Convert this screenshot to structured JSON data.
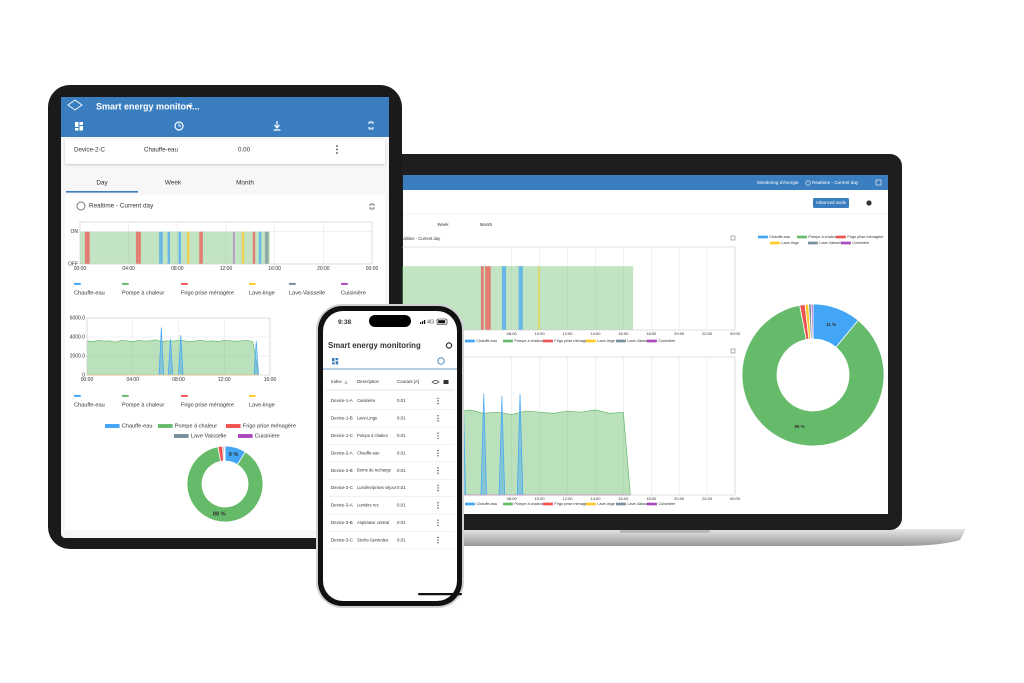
{
  "tablet": {
    "app_title": "Smart energy monitori...",
    "device_row": [
      "Device-2-C",
      "Chauffe-eau",
      "0.00"
    ],
    "tabs": [
      "Day",
      "Week",
      "Month"
    ],
    "card_title": "Realtime - Current day",
    "state_chart": {
      "type": "state",
      "xlim": [
        0,
        24
      ],
      "xticks": [
        {
          "value": 0,
          "label": "00:00"
        },
        {
          "value": 4,
          "label": "04:00"
        },
        {
          "value": 8,
          "label": "08:00"
        },
        {
          "value": 12,
          "label": "12:00"
        },
        {
          "value": 16,
          "label": "16:00"
        },
        {
          "value": 20,
          "label": "20:00"
        },
        {
          "value": 24,
          "label": "00:00"
        }
      ],
      "ylim": [
        0,
        1.3
      ],
      "yticks": [
        {
          "value": 1,
          "label": "ON"
        },
        {
          "value": 0,
          "label": "OFF"
        }
      ],
      "series": [
        {
          "name": "Pompe à chaleur",
          "color": "#66bb6a",
          "intervals": [
            [
              0,
              15.6
            ]
          ]
        },
        {
          "name": "Chauffe-eau",
          "color": "#42a5f5",
          "intervals": [
            [
              6.5,
              6.8
            ],
            [
              7.2,
              7.4
            ],
            [
              8.1,
              8.3
            ],
            [
              14.7,
              14.9
            ]
          ]
        },
        {
          "name": "Frigo prise ménagère",
          "color": "#ef5350",
          "intervals": [
            [
              0.4,
              0.8
            ],
            [
              4.6,
              5.0
            ],
            [
              9.8,
              10.1
            ],
            [
              14.2,
              14.4
            ]
          ]
        },
        {
          "name": "Lave-linge",
          "color": "#ffca28",
          "intervals": [
            [
              8.8,
              9.0
            ],
            [
              13.3,
              13.5
            ]
          ]
        },
        {
          "name": "Lave-Vaisselle",
          "color": "#78909c",
          "intervals": [
            [
              15.2,
              15.5
            ]
          ]
        },
        {
          "name": "Cuisinière",
          "color": "#ab47bc",
          "intervals": [
            [
              12.6,
              12.7
            ]
          ]
        }
      ]
    },
    "power_chart": {
      "type": "area",
      "xlim": [
        0,
        16
      ],
      "xticks": [
        {
          "value": 0,
          "label": "00:00"
        },
        {
          "value": 4,
          "label": "04:00"
        },
        {
          "value": 8,
          "label": "08:00"
        },
        {
          "value": 12,
          "label": "12:00"
        },
        {
          "value": 16,
          "label": "16:00"
        }
      ],
      "ylim": [
        0,
        6000
      ],
      "yticks": [
        0,
        {
          "value": 2000,
          "label": "2000.0"
        },
        {
          "value": 4000,
          "label": "4000.0"
        },
        {
          "value": 6000,
          "label": "6000.0"
        }
      ],
      "series": [
        {
          "name": "Chauffe-eau",
          "color": "#42a5f5",
          "x": [
            6.3,
            6.5,
            6.7,
            7.1,
            7.3,
            7.5,
            8.0,
            8.2,
            8.4,
            14.6,
            14.8,
            15.0
          ],
          "values": [
            0,
            5000,
            0,
            0,
            3800,
            0,
            0,
            4200,
            0,
            0,
            3600,
            0
          ]
        },
        {
          "name": "Pompe à chaleur",
          "color": "#66bb6a",
          "x": [
            0,
            0.5,
            1,
            1.5,
            2,
            2.5,
            3,
            3.5,
            4,
            4.5,
            5,
            5.5,
            6,
            6.5,
            7,
            7.5,
            8,
            8.5,
            9,
            9.5,
            10,
            10.5,
            11,
            11.5,
            12,
            12.5,
            13,
            13.5,
            14,
            14.5,
            15
          ],
          "values": [
            3600,
            3500,
            3650,
            3550,
            3600,
            3450,
            3650,
            3600,
            3500,
            3650,
            3550,
            3600,
            3700,
            3500,
            3600,
            3550,
            3650,
            3600,
            3500,
            3600,
            3650,
            3550,
            3600,
            3500,
            3650,
            3600,
            3550,
            3600,
            3650,
            3500,
            0
          ]
        },
        {
          "name": "Frigo prise ménagère",
          "color": "#ef5350",
          "x": [
            0,
            15
          ],
          "values": [
            0,
            0
          ]
        },
        {
          "name": "Lave-linge",
          "color": "#ffca28",
          "x": [
            0,
            15
          ],
          "values": [
            0,
            0
          ]
        }
      ]
    },
    "pie": {
      "type": "donut",
      "categories": [
        "Chauffe-eau",
        "Pompe à chaleur",
        "Frigo prise ménagère",
        "Lave Vaisselle",
        "Cuisinière"
      ],
      "colors": [
        "#42a5f5",
        "#66bb6a",
        "#ef5350",
        "#78909c",
        "#ab47bc"
      ],
      "values": [
        9,
        88,
        2,
        0.6,
        0.4
      ],
      "value_labels": [
        "9 %",
        "88 %",
        null,
        null,
        null
      ]
    }
  },
  "laptop": {
    "header_menu": "Monitoring d'énergie",
    "header_view": "Realtime - Current day",
    "button": "Advanced mode",
    "tabs": [
      "Week",
      "Month"
    ],
    "chart_caption": "Realtime - Current day",
    "state_chart": {
      "type": "state",
      "xlim": [
        0,
        24
      ],
      "xticks": [
        {
          "value": 8,
          "label": "08:00"
        },
        {
          "value": 10,
          "label": "10:00"
        },
        {
          "value": 12,
          "label": "12:00"
        },
        {
          "value": 14,
          "label": "14:00"
        },
        {
          "value": 16,
          "label": "16:00"
        },
        {
          "value": 18,
          "label": "18:00"
        },
        {
          "value": 20,
          "label": "20:00"
        },
        {
          "value": 22,
          "label": "22:00"
        },
        {
          "value": 24,
          "label": "00:00"
        }
      ],
      "ylim": [
        0,
        1.3
      ],
      "series": [
        {
          "name": "Pompe à chaleur",
          "color": "#66bb6a",
          "intervals": [
            [
              0,
              16.7
            ]
          ]
        },
        {
          "name": "Chauffe-eau",
          "color": "#42a5f5",
          "intervals": [
            [
              7.3,
              7.6
            ],
            [
              8.5,
              8.8
            ]
          ]
        },
        {
          "name": "Frigo prise ménagère",
          "color": "#ef5350",
          "intervals": [
            [
              5.8,
              6.0
            ],
            [
              6.1,
              6.5
            ]
          ]
        },
        {
          "name": "Lave-linge",
          "color": "#ffca28",
          "intervals": [
            [
              9.9,
              10.0
            ]
          ]
        },
        {
          "name": "Lave-Vaisselle",
          "color": "#78909c",
          "intervals": []
        },
        {
          "name": "Cuisinière",
          "color": "#ab47bc",
          "intervals": []
        }
      ]
    },
    "power_chart": {
      "type": "area",
      "xlim": [
        0,
        24
      ],
      "xticks": [
        {
          "value": 8,
          "label": "08:00"
        },
        {
          "value": 10,
          "label": "10:00"
        },
        {
          "value": 12,
          "label": "12:00"
        },
        {
          "value": 14,
          "label": "14:00"
        },
        {
          "value": 16,
          "label": "16:00"
        },
        {
          "value": 18,
          "label": "18:00"
        },
        {
          "value": 20,
          "label": "20:00"
        },
        {
          "value": 22,
          "label": "22:00"
        },
        {
          "value": 24,
          "label": "00:00"
        }
      ],
      "ylim": [
        0,
        6000
      ],
      "series": [
        {
          "name": "Chauffe-eau",
          "color": "#42a5f5",
          "x": [
            3.4,
            3.6,
            3.8,
            4.3,
            4.5,
            4.7,
            5.8,
            6.0,
            6.2,
            7.1,
            7.3,
            7.5,
            8.4,
            8.6,
            8.8
          ],
          "values": [
            0,
            5500,
            0,
            0,
            5200,
            0,
            0,
            4400,
            0,
            0,
            4300,
            0,
            0,
            4400,
            0
          ]
        },
        {
          "name": "Pompe à chaleur",
          "color": "#66bb6a",
          "x": [
            0,
            1,
            2,
            3,
            4,
            5,
            6,
            7,
            8,
            9,
            10,
            11,
            12,
            13,
            14,
            15,
            16,
            16.5
          ],
          "values": [
            3600,
            3500,
            3650,
            3550,
            3600,
            3700,
            3550,
            3600,
            3500,
            3650,
            3600,
            3550,
            3650,
            3600,
            3700,
            3550,
            3600,
            0
          ]
        },
        {
          "name": "Frigo prise ménagère",
          "color": "#ef5350",
          "x": [
            0,
            16.5
          ],
          "values": [
            0,
            0
          ]
        },
        {
          "name": "Lave-linge",
          "color": "#ffca28",
          "x": [
            0,
            16.5
          ],
          "values": [
            0,
            0
          ]
        },
        {
          "name": "Lave-Vaisselle",
          "color": "#78909c",
          "x": [
            0,
            16.5
          ],
          "values": [
            0,
            0
          ]
        },
        {
          "name": "Cuisinière",
          "color": "#ab47bc",
          "x": [
            0,
            16.5
          ],
          "values": [
            0,
            0
          ]
        }
      ]
    },
    "pie": {
      "type": "donut",
      "categories": [
        "Chauffe-eau",
        "Pompe à chaleur",
        "Frigo prise ménagère",
        "Lave-linge",
        "Lave-Vaisselle",
        "Cuisinière"
      ],
      "colors": [
        "#42a5f5",
        "#66bb6a",
        "#ef5350",
        "#ffca28",
        "#78909c",
        "#ab47bc"
      ],
      "values": [
        11,
        86,
        1.2,
        0.8,
        0.6,
        0.4
      ],
      "value_labels": [
        "11 %",
        "86 %",
        null,
        null,
        null,
        null
      ]
    }
  },
  "phone": {
    "time": "9:38",
    "network": "4G",
    "title": "Smart energy monitoring",
    "table": {
      "header": [
        "Index",
        "Description",
        "Courant [A]"
      ],
      "rows": [
        [
          "Device-1-A",
          "Cuisinière",
          "0.01"
        ],
        [
          "Device-1-B",
          "Lave-Linge",
          "0.01"
        ],
        [
          "Device-1-C",
          "Pompe à chaleur",
          "0.01"
        ],
        [
          "Device-2-A",
          "Chauffe-eau",
          "0.01"
        ],
        [
          "Device-2-B",
          "Borne de recharge",
          "0.01"
        ],
        [
          "Device-2-C",
          "Lumière/prises séjour",
          "0.01"
        ],
        [
          "Device-3-A",
          "Lumière rez",
          "0.01"
        ],
        [
          "Device-3-B",
          "Aspirateur central",
          "0.01"
        ],
        [
          "Device-3-C",
          "Sèche-Serviettes",
          "0.01"
        ]
      ]
    }
  }
}
